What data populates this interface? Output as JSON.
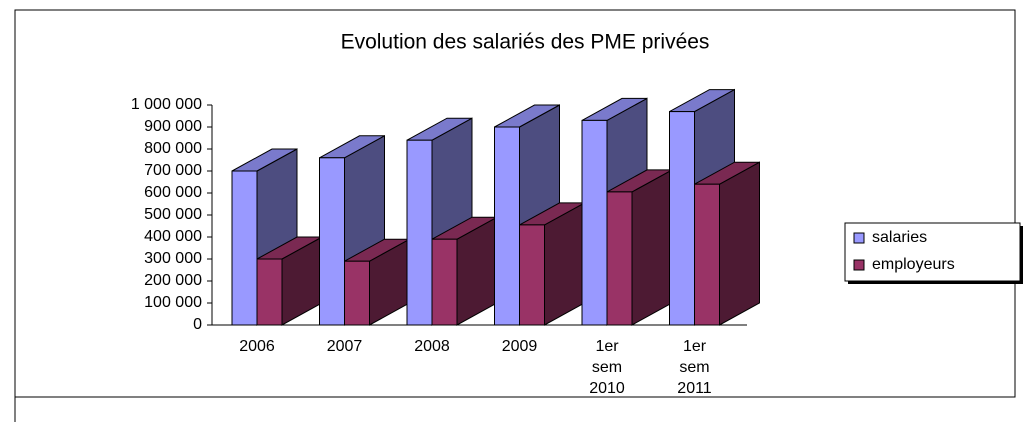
{
  "chart_data": {
    "type": "bar3d",
    "title": "Evolution des salariés des PME privées",
    "categories": [
      "2006",
      "2007",
      "2008",
      "2009",
      "1er sem 2010",
      "1er sem 2011"
    ],
    "series": [
      {
        "name": "salaries",
        "color": "#9999ff",
        "values": [
          700000,
          760000,
          840000,
          900000,
          930000,
          970000
        ]
      },
      {
        "name": "employeurs",
        "color": "#993366",
        "values": [
          300000,
          290000,
          390000,
          455000,
          605000,
          640000
        ]
      }
    ],
    "ylim": [
      0,
      1000000
    ],
    "yticks": [
      0,
      {
        "value": 100000,
        "label": "100 000"
      },
      {
        "value": 200000,
        "label": "200 000"
      },
      {
        "value": 300000,
        "label": "300 000"
      },
      {
        "value": 400000,
        "label": "400 000"
      },
      {
        "value": 500000,
        "label": "500 000"
      },
      {
        "value": 600000,
        "label": "600 000"
      },
      {
        "value": 700000,
        "label": "700 000"
      },
      {
        "value": 800000,
        "label": "800 000"
      },
      {
        "value": 900000,
        "label": "900 000"
      },
      {
        "value": 1000000,
        "label": "1 000 000"
      }
    ],
    "grid": false,
    "legend": "right"
  }
}
